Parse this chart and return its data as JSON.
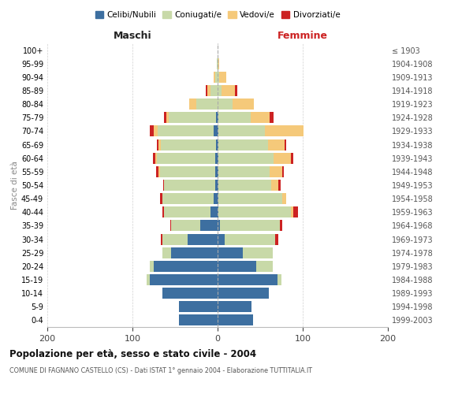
{
  "age_groups": [
    "0-4",
    "5-9",
    "10-14",
    "15-19",
    "20-24",
    "25-29",
    "30-34",
    "35-39",
    "40-44",
    "45-49",
    "50-54",
    "55-59",
    "60-64",
    "65-69",
    "70-74",
    "75-79",
    "80-84",
    "85-89",
    "90-94",
    "95-99",
    "100+"
  ],
  "birth_years": [
    "1999-2003",
    "1994-1998",
    "1989-1993",
    "1984-1988",
    "1979-1983",
    "1974-1978",
    "1969-1973",
    "1964-1968",
    "1959-1963",
    "1954-1958",
    "1949-1953",
    "1944-1948",
    "1939-1943",
    "1934-1938",
    "1929-1933",
    "1924-1928",
    "1919-1923",
    "1914-1918",
    "1909-1913",
    "1904-1908",
    "≤ 1903"
  ],
  "males_celibi": [
    45,
    45,
    65,
    80,
    75,
    55,
    35,
    20,
    8,
    5,
    3,
    3,
    3,
    2,
    5,
    2,
    0,
    0,
    0,
    0,
    0
  ],
  "males_coniugati": [
    0,
    0,
    0,
    3,
    5,
    10,
    30,
    35,
    55,
    60,
    60,
    65,
    68,
    65,
    65,
    55,
    25,
    8,
    3,
    1,
    0
  ],
  "males_vedovi": [
    0,
    0,
    0,
    0,
    0,
    0,
    0,
    0,
    0,
    0,
    0,
    1,
    2,
    2,
    5,
    3,
    8,
    4,
    2,
    0,
    0
  ],
  "males_divorziati": [
    0,
    0,
    0,
    0,
    0,
    0,
    2,
    1,
    2,
    3,
    1,
    3,
    3,
    2,
    5,
    3,
    0,
    2,
    0,
    0,
    0
  ],
  "females_nubili": [
    42,
    40,
    60,
    70,
    45,
    30,
    8,
    3,
    1,
    1,
    1,
    1,
    1,
    1,
    1,
    1,
    0,
    0,
    0,
    0,
    0
  ],
  "females_coniugate": [
    0,
    0,
    0,
    5,
    20,
    35,
    60,
    70,
    85,
    75,
    62,
    60,
    65,
    58,
    55,
    38,
    18,
    5,
    2,
    1,
    0
  ],
  "females_vedove": [
    0,
    0,
    0,
    0,
    0,
    0,
    0,
    0,
    3,
    5,
    8,
    15,
    20,
    20,
    45,
    22,
    25,
    15,
    8,
    1,
    0
  ],
  "females_divorziate": [
    0,
    0,
    0,
    0,
    0,
    0,
    3,
    3,
    5,
    0,
    3,
    2,
    3,
    2,
    0,
    5,
    0,
    3,
    0,
    0,
    0
  ],
  "colors_celibi": "#3d6fa0",
  "colors_coniugati": "#c8d9a8",
  "colors_vedovi": "#f5c97a",
  "colors_divorziati": "#cc2222",
  "title": "Popolazione per età, sesso e stato civile - 2004",
  "subtitle": "COMUNE DI FAGNANO CASTELLO (CS) - Dati ISTAT 1° gennaio 2004 - Elaborazione TUTTITALIA.IT",
  "label_maschi": "Maschi",
  "label_femmine": "Femmine",
  "ylabel_left": "Fasce di età",
  "legend_labels": [
    "Celibi/Nubili",
    "Coniugati/e",
    "Vedovi/e",
    "Divorziati/e"
  ],
  "xlim": 200,
  "bg_color": "#ffffff",
  "grid_color": "#cccccc"
}
